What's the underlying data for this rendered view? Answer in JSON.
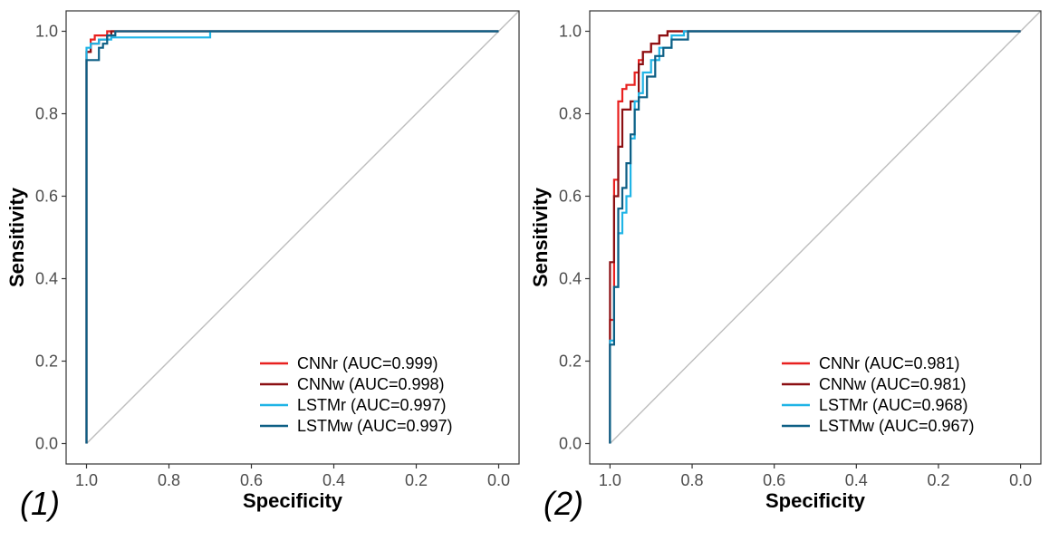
{
  "chart_data": [
    {
      "type": "line",
      "panel_label": "(1)",
      "xlabel": "Specificity",
      "ylabel": "Sensitivity",
      "x_reversed": true,
      "xlim": [
        1.0,
        0.0
      ],
      "ylim": [
        0.0,
        1.0
      ],
      "xticks": [
        "1.0",
        "0.8",
        "0.6",
        "0.4",
        "0.2",
        "0.0"
      ],
      "yticks": [
        "0.0",
        "0.2",
        "0.4",
        "0.6",
        "0.8",
        "1.0"
      ],
      "grid": false,
      "legend_position": "bottom-right",
      "diagonal_reference": true,
      "series": [
        {
          "name": "CNNr (AUC=0.999)",
          "color": "#e8201f",
          "x": [
            1.0,
            1.0,
            0.99,
            0.99,
            0.98,
            0.98,
            0.95,
            0.95,
            0.0
          ],
          "y": [
            0.0,
            0.95,
            0.95,
            0.98,
            0.98,
            0.99,
            0.99,
            1.0,
            1.0
          ]
        },
        {
          "name": "CNNw (AUC=0.998)",
          "color": "#8b0f12",
          "x": [
            1.0,
            1.0,
            0.99,
            0.99,
            0.97,
            0.97,
            0.95,
            0.95,
            0.94,
            0.94,
            0.0
          ],
          "y": [
            0.0,
            0.95,
            0.95,
            0.97,
            0.97,
            0.98,
            0.98,
            0.99,
            0.99,
            1.0,
            1.0
          ]
        },
        {
          "name": "LSTMr (AUC=0.997)",
          "color": "#1fb4e6",
          "x": [
            1.0,
            1.0,
            0.99,
            0.99,
            0.97,
            0.97,
            0.94,
            0.94,
            0.7,
            0.7,
            0.0
          ],
          "y": [
            0.0,
            0.96,
            0.96,
            0.97,
            0.97,
            0.98,
            0.98,
            0.985,
            0.985,
            1.0,
            1.0
          ]
        },
        {
          "name": "LSTMw (AUC=0.997)",
          "color": "#0d5f85",
          "x": [
            1.0,
            1.0,
            0.97,
            0.97,
            0.96,
            0.96,
            0.95,
            0.95,
            0.93,
            0.93,
            0.0
          ],
          "y": [
            0.0,
            0.93,
            0.93,
            0.96,
            0.96,
            0.97,
            0.97,
            0.99,
            0.99,
            1.0,
            1.0
          ]
        }
      ]
    },
    {
      "type": "line",
      "panel_label": "(2)",
      "xlabel": "Specificity",
      "ylabel": "Sensitivity",
      "x_reversed": true,
      "xlim": [
        1.0,
        0.0
      ],
      "ylim": [
        0.0,
        1.0
      ],
      "xticks": [
        "1.0",
        "0.8",
        "0.6",
        "0.4",
        "0.2",
        "0.0"
      ],
      "yticks": [
        "0.0",
        "0.2",
        "0.4",
        "0.6",
        "0.8",
        "1.0"
      ],
      "grid": false,
      "legend_position": "bottom-right",
      "diagonal_reference": true,
      "series": [
        {
          "name": "CNNr (AUC=0.981)",
          "color": "#e8201f",
          "x": [
            1.0,
            1.0,
            0.99,
            0.99,
            0.98,
            0.98,
            0.97,
            0.97,
            0.96,
            0.96,
            0.94,
            0.94,
            0.93,
            0.93,
            0.92,
            0.92,
            0.9,
            0.9,
            0.88,
            0.88,
            0.86,
            0.86,
            0.0
          ],
          "y": [
            0.0,
            0.3,
            0.3,
            0.64,
            0.64,
            0.83,
            0.83,
            0.86,
            0.86,
            0.87,
            0.87,
            0.9,
            0.9,
            0.93,
            0.93,
            0.95,
            0.95,
            0.97,
            0.97,
            0.99,
            0.99,
            1.0,
            1.0
          ]
        },
        {
          "name": "CNNw (AUC=0.981)",
          "color": "#8b0f12",
          "x": [
            1.0,
            1.0,
            0.99,
            0.99,
            0.98,
            0.98,
            0.97,
            0.97,
            0.95,
            0.95,
            0.93,
            0.93,
            0.92,
            0.92,
            0.9,
            0.9,
            0.88,
            0.88,
            0.86,
            0.86,
            0.0
          ],
          "y": [
            0.0,
            0.44,
            0.44,
            0.6,
            0.6,
            0.72,
            0.72,
            0.81,
            0.81,
            0.83,
            0.83,
            0.92,
            0.92,
            0.95,
            0.95,
            0.97,
            0.97,
            0.99,
            0.99,
            1.0,
            1.0
          ]
        },
        {
          "name": "LSTMr (AUC=0.968)",
          "color": "#1fb4e6",
          "x": [
            1.0,
            1.0,
            0.99,
            0.99,
            0.98,
            0.98,
            0.97,
            0.97,
            0.96,
            0.96,
            0.95,
            0.95,
            0.94,
            0.94,
            0.93,
            0.93,
            0.92,
            0.92,
            0.9,
            0.9,
            0.88,
            0.88,
            0.85,
            0.85,
            0.82,
            0.82,
            0.0
          ],
          "y": [
            0.0,
            0.25,
            0.25,
            0.38,
            0.38,
            0.51,
            0.51,
            0.56,
            0.56,
            0.6,
            0.6,
            0.74,
            0.74,
            0.83,
            0.83,
            0.85,
            0.85,
            0.9,
            0.9,
            0.93,
            0.93,
            0.96,
            0.96,
            0.99,
            0.99,
            1.0,
            1.0
          ]
        },
        {
          "name": "LSTMw (AUC=0.967)",
          "color": "#0d5f85",
          "x": [
            1.0,
            1.0,
            0.99,
            0.99,
            0.98,
            0.98,
            0.97,
            0.97,
            0.96,
            0.96,
            0.95,
            0.95,
            0.94,
            0.94,
            0.93,
            0.93,
            0.91,
            0.91,
            0.89,
            0.89,
            0.87,
            0.87,
            0.85,
            0.85,
            0.81,
            0.81,
            0.0
          ],
          "y": [
            0.0,
            0.24,
            0.24,
            0.38,
            0.38,
            0.57,
            0.57,
            0.62,
            0.62,
            0.68,
            0.68,
            0.75,
            0.75,
            0.81,
            0.81,
            0.84,
            0.84,
            0.89,
            0.89,
            0.94,
            0.94,
            0.96,
            0.96,
            0.98,
            0.98,
            1.0,
            1.0
          ]
        }
      ]
    }
  ]
}
